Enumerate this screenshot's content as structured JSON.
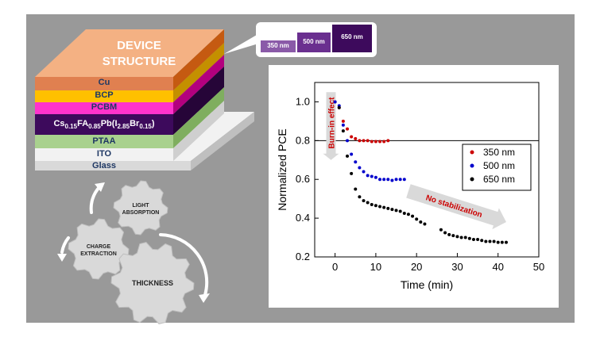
{
  "device": {
    "title_line1": "DEVICE",
    "title_line2": "STRUCTURE",
    "layers": [
      {
        "label": "Cu",
        "color": "#c55a11"
      },
      {
        "label": "BCP",
        "color": "#ffc000"
      },
      {
        "label": "PCBM",
        "color": "#ff33cc"
      },
      {
        "label": "Cs",
        "color": "#3d0a5c"
      },
      {
        "label": "PTAA",
        "color": "#a9d18e"
      },
      {
        "label": "ITO",
        "color": "#f2f2f2"
      },
      {
        "label": "Glass",
        "color": "#e7e6e6"
      }
    ],
    "perovskite": {
      "a": "Cs",
      "a_sub": "0.15",
      "b": "FA",
      "b_sub": "0.85",
      "c": "Pb(I",
      "c_sub": "2.85",
      "d": "Br",
      "d_sub": "0.15",
      "e": ")"
    }
  },
  "thickness_bars": [
    {
      "label": "350 nm",
      "color": "#8a5aa8"
    },
    {
      "label": "500 nm",
      "color": "#6a2f8f"
    },
    {
      "label": "650 nm",
      "color": "#3d0a5c"
    }
  ],
  "gears": {
    "light": [
      "LIGHT",
      "ABSORPTION"
    ],
    "charge": [
      "CHARGE",
      "EXTRACTION"
    ],
    "thickness": "THICKNESS"
  },
  "annotations": {
    "burn_in": "Burn-in effect",
    "no_stabilization": "No stabilization"
  },
  "colors": {
    "s350": "#cc0000",
    "s500": "#0000cc",
    "s650": "#000000"
  },
  "chart_data": {
    "type": "scatter",
    "xlabel": "Time (min)",
    "ylabel": "Normalized PCE",
    "xlim": [
      -5,
      50
    ],
    "ylim": [
      0.2,
      1.1
    ],
    "xticks": [
      0,
      10,
      20,
      30,
      40,
      50
    ],
    "yticks": [
      0.2,
      0.4,
      0.6,
      0.8,
      1.0
    ],
    "xtick_labels": [
      "0",
      "10",
      "20",
      "30",
      "40",
      "50"
    ],
    "ytick_labels": [
      "0.2",
      "0.4",
      "0.6",
      "0.8",
      "1.0"
    ],
    "reference_line": 0.8,
    "legend_position": "right",
    "series": [
      {
        "name": "350 nm",
        "color": "#cc0000",
        "points": [
          [
            0,
            1.0
          ],
          [
            1,
            0.97
          ],
          [
            2,
            0.9
          ],
          [
            3,
            0.86
          ],
          [
            4,
            0.82
          ],
          [
            5,
            0.81
          ],
          [
            6,
            0.8
          ],
          [
            7,
            0.8
          ],
          [
            8,
            0.8
          ],
          [
            9,
            0.795
          ],
          [
            10,
            0.795
          ],
          [
            11,
            0.795
          ],
          [
            12,
            0.795
          ],
          [
            13,
            0.8
          ]
        ]
      },
      {
        "name": "500 nm",
        "color": "#0000cc",
        "points": [
          [
            0,
            1.0
          ],
          [
            1,
            0.98
          ],
          [
            2,
            0.88
          ],
          [
            3,
            0.8
          ],
          [
            4,
            0.73
          ],
          [
            5,
            0.69
          ],
          [
            6,
            0.66
          ],
          [
            7,
            0.64
          ],
          [
            8,
            0.62
          ],
          [
            9,
            0.615
          ],
          [
            10,
            0.61
          ],
          [
            11,
            0.6
          ],
          [
            12,
            0.6
          ],
          [
            13,
            0.6
          ],
          [
            14,
            0.595
          ],
          [
            15,
            0.6
          ],
          [
            16,
            0.6
          ],
          [
            17,
            0.6
          ]
        ]
      },
      {
        "name": "650 nm",
        "color": "#000000",
        "points": [
          [
            1,
            0.97
          ],
          [
            2,
            0.85
          ],
          [
            3,
            0.72
          ],
          [
            4,
            0.63
          ],
          [
            5,
            0.55
          ],
          [
            6,
            0.51
          ],
          [
            7,
            0.49
          ],
          [
            8,
            0.48
          ],
          [
            9,
            0.47
          ],
          [
            10,
            0.465
          ],
          [
            11,
            0.46
          ],
          [
            12,
            0.455
          ],
          [
            13,
            0.45
          ],
          [
            14,
            0.445
          ],
          [
            15,
            0.44
          ],
          [
            16,
            0.435
          ],
          [
            17,
            0.425
          ],
          [
            18,
            0.42
          ],
          [
            19,
            0.41
          ],
          [
            20,
            0.395
          ],
          [
            21,
            0.38
          ],
          [
            22,
            0.37
          ],
          [
            26,
            0.34
          ],
          [
            27,
            0.325
          ],
          [
            28,
            0.315
          ],
          [
            29,
            0.31
          ],
          [
            30,
            0.305
          ],
          [
            31,
            0.3
          ],
          [
            32,
            0.3
          ],
          [
            33,
            0.295
          ],
          [
            34,
            0.29
          ],
          [
            35,
            0.29
          ],
          [
            36,
            0.285
          ],
          [
            37,
            0.28
          ],
          [
            38,
            0.28
          ],
          [
            39,
            0.28
          ],
          [
            40,
            0.275
          ],
          [
            41,
            0.275
          ],
          [
            42,
            0.275
          ]
        ]
      }
    ]
  }
}
